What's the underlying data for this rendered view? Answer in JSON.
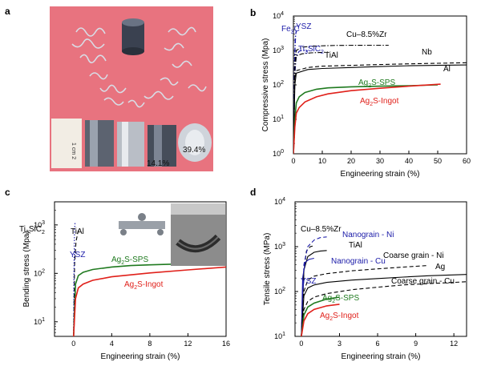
{
  "panel_letters": [
    "a",
    "b",
    "c",
    "d"
  ],
  "photo": {
    "scale_text": "1 cm 2",
    "sample_labels": [
      "14.1%",
      "39.4%"
    ]
  },
  "chart_data": [
    {
      "id": "b",
      "type": "line",
      "ylog": true,
      "xlabel": "Engineering strain (%)",
      "ylabel": "Compressive stress (Mpa)",
      "xlim": [
        0,
        60
      ],
      "ylim": [
        1,
        10000
      ],
      "xticks": [
        0,
        10,
        20,
        30,
        40,
        50,
        60
      ],
      "yticks": [
        1,
        10,
        100,
        1000,
        10000
      ],
      "ytick_labels": [
        "10^0",
        "10^1",
        "10^2",
        "10^3",
        "10^4"
      ],
      "series": [
        {
          "name": "Fe3C",
          "color": "#1a1aa8",
          "dash": "dashdot",
          "x": [
            0,
            0.3,
            0.6,
            0.9,
            1.1
          ],
          "y": [
            1,
            200,
            2300,
            3300,
            3500
          ]
        },
        {
          "name": "YSZ",
          "color": "#1a1aa8",
          "dash": "dashdot",
          "x": [
            0,
            0.4,
            0.8,
            1.0
          ],
          "y": [
            1,
            500,
            3000,
            3700
          ]
        },
        {
          "name": "Ti3SiC2",
          "color": "#1a1aa8",
          "dash": "dashdot",
          "x": [
            0,
            0.5,
            1,
            2,
            3,
            4,
            5
          ],
          "y": [
            1,
            200,
            700,
            950,
            1000,
            1000,
            950
          ]
        },
        {
          "name": "TiAl",
          "color": "#000000",
          "dash": "dashdot",
          "x": [
            0,
            0.5,
            1,
            3,
            6,
            10,
            12
          ],
          "y": [
            1,
            300,
            700,
            800,
            850,
            880,
            900
          ]
        },
        {
          "name": "Cu-8.5%Zr",
          "color": "#000000",
          "dash": "dashdot",
          "x": [
            0,
            0.5,
            1,
            3,
            8,
            15,
            25,
            33
          ],
          "y": [
            1,
            400,
            1000,
            1250,
            1350,
            1400,
            1420,
            1420
          ]
        },
        {
          "name": "Nb",
          "color": "#000000",
          "dash": "dashed",
          "x": [
            0,
            0.5,
            1,
            5,
            10,
            20,
            30,
            40,
            50,
            60
          ],
          "y": [
            1,
            150,
            260,
            320,
            350,
            370,
            390,
            410,
            425,
            440
          ]
        },
        {
          "name": "Al",
          "color": "#000000",
          "dash": "solid",
          "x": [
            0,
            0.5,
            1,
            5,
            10,
            20,
            30,
            40,
            50,
            60
          ],
          "y": [
            1,
            100,
            220,
            280,
            300,
            320,
            340,
            360,
            370,
            380
          ]
        },
        {
          "name": "Ag2S-SPS",
          "color": "#1f7a1f",
          "dash": "solid",
          "x": [
            0,
            0.5,
            1,
            2,
            4,
            8,
            12,
            20,
            30,
            40,
            50
          ],
          "y": [
            1,
            10,
            30,
            45,
            60,
            75,
            82,
            88,
            92,
            95,
            100
          ]
        },
        {
          "name": "Ag2S-Ingot",
          "color": "#e0201a",
          "dash": "solid",
          "x": [
            0,
            0.5,
            1,
            2,
            4,
            8,
            12,
            20,
            30,
            40,
            51
          ],
          "y": [
            1,
            6,
            15,
            22,
            32,
            45,
            55,
            68,
            80,
            92,
            105
          ]
        }
      ],
      "labels": [
        {
          "text": "Fe3C",
          "color": "#1a1aa8"
        },
        {
          "text": "YSZ",
          "color": "#1a1aa8"
        },
        {
          "text": "Cu–8.5%Zr",
          "color": "#000000"
        },
        {
          "text": "Ti3SiC2",
          "color": "#1a1aa8"
        },
        {
          "text": "TiAl",
          "color": "#000000"
        },
        {
          "text": "Nb",
          "color": "#000000"
        },
        {
          "text": "Al",
          "color": "#000000"
        },
        {
          "text": "Ag2S-SPS",
          "color": "#1f7a1f"
        },
        {
          "text": "Ag2S-Ingot",
          "color": "#e0201a"
        }
      ]
    },
    {
      "id": "c",
      "type": "line",
      "ylog": true,
      "xlabel": "Engineering strain (%)",
      "ylabel": "Bending stress (Mpa)",
      "xlim": [
        -2,
        16
      ],
      "ylim": [
        5,
        3000
      ],
      "xticks": [
        0,
        4,
        8,
        12,
        16
      ],
      "yticks": [
        10,
        100,
        1000
      ],
      "ytick_labels": [
        "10^1",
        "10^2",
        "10^3"
      ],
      "series": [
        {
          "name": "Ti3SiC2",
          "color": "#1a1aa8",
          "dash": "dotted",
          "x": [
            0,
            0.05,
            0.1,
            0.15
          ],
          "y": [
            5,
            200,
            800,
            1100
          ]
        },
        {
          "name": "TiAl",
          "color": "#000000",
          "dash": "dashed",
          "x": [
            0,
            0.1,
            0.25,
            0.45,
            0.6
          ],
          "y": [
            5,
            150,
            450,
            700,
            850
          ]
        },
        {
          "name": "YSZ",
          "color": "#1a1aa8",
          "dash": "dotted",
          "x": [
            0,
            0.05,
            0.1,
            0.15
          ],
          "y": [
            5,
            100,
            250,
            320
          ]
        },
        {
          "name": "Ag2S-SPS",
          "color": "#1f7a1f",
          "dash": "solid",
          "x": [
            0,
            0.2,
            0.5,
            1,
            2,
            4,
            6,
            8,
            10.5
          ],
          "y": [
            5,
            60,
            90,
            105,
            120,
            135,
            145,
            150,
            155
          ]
        },
        {
          "name": "Ag2S-Ingot",
          "color": "#e0201a",
          "dash": "solid",
          "x": [
            0,
            0.2,
            0.5,
            1,
            2,
            4,
            8,
            12,
            16
          ],
          "y": [
            5,
            30,
            50,
            60,
            72,
            85,
            102,
            118,
            135
          ]
        }
      ],
      "labels": [
        {
          "text": "Ti3SiC2",
          "color": "#000000"
        },
        {
          "text": "TiAl",
          "color": "#000000"
        },
        {
          "text": "YSZ",
          "color": "#1a1aa8"
        },
        {
          "text": "Ag2S-SPS",
          "color": "#1f7a1f"
        },
        {
          "text": "Ag2S-Ingot",
          "color": "#e0201a"
        }
      ]
    },
    {
      "id": "d",
      "type": "line",
      "ylog": true,
      "xlabel": "Engineering strain (%)",
      "ylabel": "Tensile stress (MPa)",
      "xlim": [
        -0.5,
        13
      ],
      "ylim": [
        10,
        10000
      ],
      "xticks": [
        0,
        3,
        6,
        9,
        12
      ],
      "yticks": [
        10,
        100,
        1000,
        10000
      ],
      "ytick_labels": [
        "10^1",
        "10^2",
        "10^3",
        "10^4"
      ],
      "series": [
        {
          "name": "Cu–8.5%Zr",
          "color": "#000000",
          "dash": "dashed",
          "x": [
            0,
            0.2,
            0.4,
            0.7,
            1
          ],
          "y": [
            10,
            300,
            800,
            1000,
            1050
          ]
        },
        {
          "name": "Nanograin - Ni",
          "color": "#1a1aa8",
          "dash": "dashed",
          "x": [
            0,
            0.2,
            0.5,
            1,
            1.5,
            2
          ],
          "y": [
            10,
            400,
            1000,
            1400,
            1600,
            1650
          ]
        },
        {
          "name": "TiAl",
          "color": "#000000",
          "dash": "solid",
          "x": [
            0,
            0.2,
            0.5,
            1,
            1.5,
            2
          ],
          "y": [
            10,
            300,
            600,
            750,
            800,
            820
          ]
        },
        {
          "name": "Nanograin - Cu",
          "color": "#1a1aa8",
          "dash": "solid",
          "x": [
            0,
            0.1,
            0.3,
            0.6,
            1
          ],
          "y": [
            10,
            200,
            450,
            520,
            550
          ]
        },
        {
          "name": "YSZ",
          "color": "#1a1aa8",
          "dash": "solid",
          "x": [
            0,
            0.1,
            0.2,
            0.3
          ],
          "y": [
            10,
            100,
            180,
            200
          ]
        },
        {
          "name": "Coarse grain - Ni",
          "color": "#000000",
          "dash": "dashed",
          "x": [
            0,
            0.2,
            0.5,
            1,
            2,
            4,
            6,
            8,
            10
          ],
          "y": [
            10,
            100,
            180,
            220,
            250,
            290,
            320,
            350,
            380
          ]
        },
        {
          "name": "Ag",
          "color": "#000000",
          "dash": "solid",
          "x": [
            0,
            0.2,
            0.5,
            1,
            2,
            4,
            6,
            8,
            10,
            13
          ],
          "y": [
            10,
            80,
            120,
            140,
            160,
            180,
            195,
            210,
            225,
            240
          ]
        },
        {
          "name": "Coarse grain - Cu",
          "color": "#000000",
          "dash": "dashed",
          "x": [
            0,
            0.2,
            0.5,
            1,
            2,
            4,
            6,
            8,
            10,
            12,
            13
          ],
          "y": [
            10,
            40,
            60,
            75,
            90,
            110,
            125,
            140,
            150,
            160,
            165
          ]
        },
        {
          "name": "Ag2S-SPS",
          "color": "#1f7a1f",
          "dash": "solid",
          "x": [
            0,
            0.2,
            0.5,
            1,
            2,
            3
          ],
          "y": [
            10,
            30,
            45,
            55,
            68,
            75
          ]
        },
        {
          "name": "Ag2S-Ingot",
          "color": "#e0201a",
          "dash": "solid",
          "x": [
            0,
            0.2,
            0.5,
            1,
            2,
            3
          ],
          "y": [
            10,
            22,
            32,
            40,
            48,
            52
          ]
        }
      ],
      "labels": [
        {
          "text": "Cu–8.5%Zr",
          "color": "#000000"
        },
        {
          "text": "Nanograin - Ni",
          "color": "#1a1aa8"
        },
        {
          "text": "TiAl",
          "color": "#000000"
        },
        {
          "text": "Nanograin - Cu",
          "color": "#1a1aa8"
        },
        {
          "text": "Coarse grain - Ni",
          "color": "#000000"
        },
        {
          "text": "Ag",
          "color": "#000000"
        },
        {
          "text": "YSZ",
          "color": "#1a1aa8"
        },
        {
          "text": "Coarse grain - Cu",
          "color": "#000000"
        },
        {
          "text": "Ag2S-SPS",
          "color": "#1f7a1f"
        },
        {
          "text": "Ag2S-Ingot",
          "color": "#e0201a"
        }
      ]
    }
  ]
}
